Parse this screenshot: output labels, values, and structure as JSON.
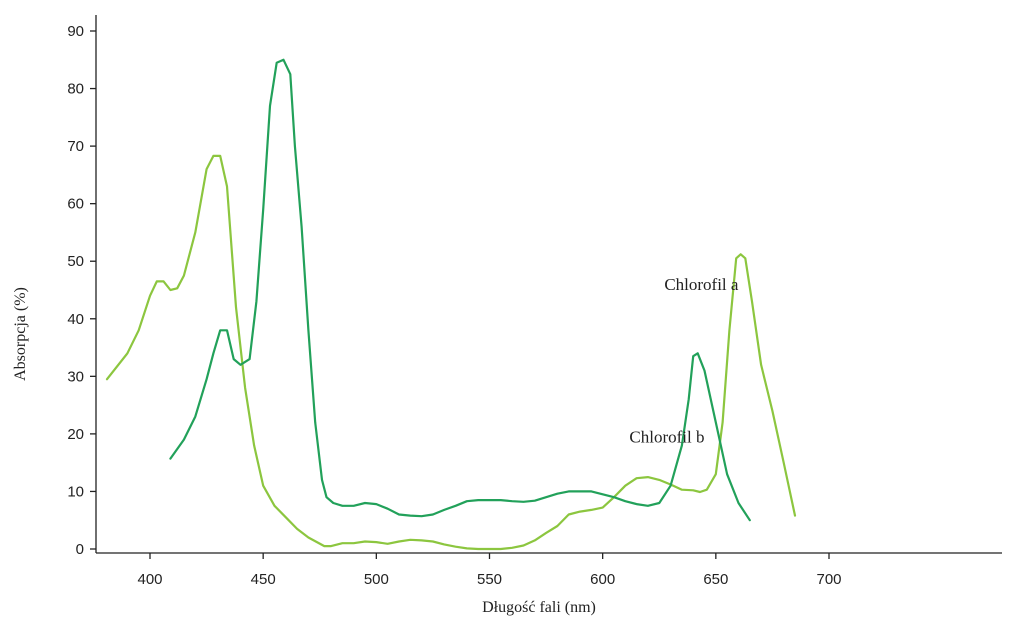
{
  "chart_data": {
    "type": "line",
    "title": "",
    "xlabel": "Długość fali (nm)",
    "ylabel": "Absorpcja (%)",
    "xlim": [
      380,
      710
    ],
    "ylim": [
      0,
      92
    ],
    "x_ticks": [
      400,
      450,
      500,
      550,
      600,
      650,
      700
    ],
    "y_ticks": [
      0,
      10,
      20,
      30,
      40,
      50,
      60,
      70,
      80,
      90
    ],
    "grid": false,
    "legend": "none",
    "series": [
      {
        "name": "Chlorofil a",
        "color": "#8cc63f",
        "x": [
          381,
          390,
          395,
          400,
          403,
          406,
          409,
          412,
          415,
          420,
          425,
          428,
          431,
          434,
          438,
          442,
          446,
          450,
          455,
          460,
          465,
          470,
          477,
          480,
          485,
          490,
          495,
          500,
          505,
          510,
          515,
          520,
          525,
          530,
          535,
          540,
          545,
          550,
          555,
          560,
          565,
          570,
          575,
          580,
          585,
          590,
          595,
          600,
          605,
          610,
          615,
          620,
          625,
          630,
          635,
          640,
          643,
          646,
          650,
          653,
          656,
          659,
          661,
          663,
          666,
          670,
          675,
          680,
          685
        ],
        "y": [
          29.5,
          34,
          38,
          44,
          46.5,
          46.5,
          45,
          45.3,
          47.5,
          55,
          66,
          68.3,
          68.3,
          63,
          42,
          28,
          18,
          11,
          7.5,
          5.5,
          3.5,
          2,
          0.5,
          0.5,
          1,
          1,
          1.3,
          1.2,
          0.9,
          1.3,
          1.6,
          1.5,
          1.3,
          0.8,
          0.4,
          0.1,
          0,
          0,
          0,
          0.2,
          0.6,
          1.5,
          2.8,
          4,
          6,
          6.5,
          6.8,
          7.2,
          9,
          11,
          12.3,
          12.5,
          12,
          11.2,
          10.3,
          10.2,
          9.9,
          10.3,
          13,
          22,
          38,
          50.5,
          51.2,
          50.5,
          43,
          32,
          24,
          15,
          5.8
        ]
      },
      {
        "name": "Chlorofil b",
        "color": "#22a15a",
        "x": [
          409,
          415,
          420,
          425,
          428,
          431,
          434,
          437,
          440,
          444,
          447,
          450,
          453,
          456,
          459,
          462,
          464,
          467,
          470,
          473,
          476,
          478,
          481,
          485,
          490,
          495,
          500,
          505,
          510,
          515,
          520,
          525,
          530,
          535,
          540,
          545,
          550,
          555,
          560,
          565,
          570,
          575,
          580,
          585,
          590,
          595,
          600,
          605,
          610,
          615,
          620,
          625,
          630,
          635,
          638,
          640,
          642,
          645,
          650,
          655,
          660,
          665
        ],
        "y": [
          15.7,
          19,
          23,
          29.5,
          34,
          38,
          38,
          33,
          32,
          33,
          43,
          59,
          77,
          84.5,
          85,
          82.5,
          70,
          56,
          38,
          22,
          12,
          9,
          8,
          7.5,
          7.5,
          8,
          7.8,
          7,
          6,
          5.8,
          5.7,
          6,
          6.8,
          7.5,
          8.3,
          8.5,
          8.5,
          8.5,
          8.3,
          8.2,
          8.4,
          9,
          9.6,
          10,
          10,
          10,
          9.5,
          9,
          8.3,
          7.8,
          7.5,
          8,
          11,
          18,
          26,
          33.5,
          34,
          31,
          22,
          13,
          8,
          5
        ]
      }
    ],
    "annotations": [
      {
        "text": "Chlorofil a",
        "x": 660,
        "y": 45
      },
      {
        "text": "Chlorofil b",
        "x": 645,
        "y": 18.5
      }
    ]
  }
}
